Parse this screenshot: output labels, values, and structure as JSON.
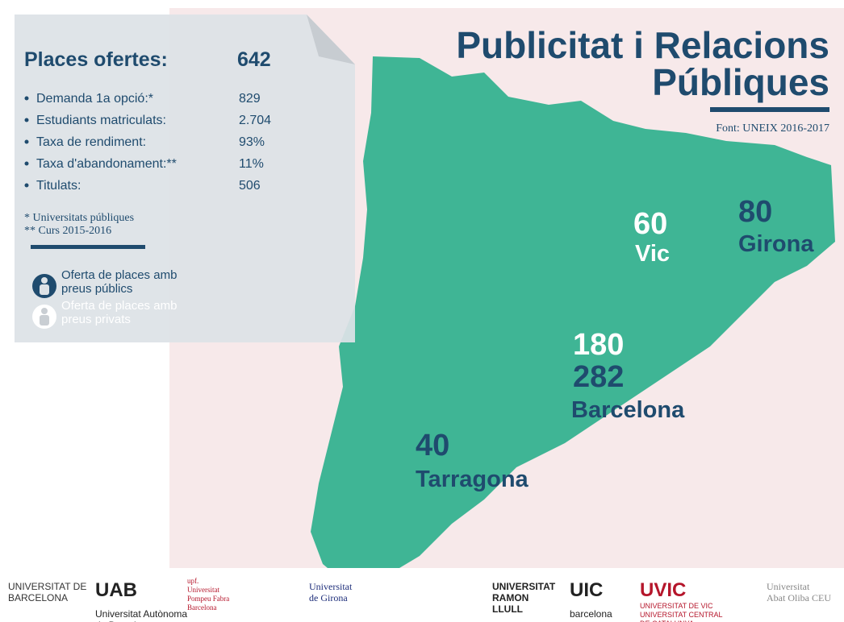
{
  "header": {
    "title_lines": [
      "Publicitat i Relacions",
      "Públiques"
    ],
    "source": "Font: UNEIX 2016-2017"
  },
  "panel": {
    "title": "Places ofertes:",
    "total": "642",
    "stats": [
      {
        "label": "Demanda 1a opció:*",
        "value": "829"
      },
      {
        "label": "Estudiants matriculats:",
        "value": "2.704"
      },
      {
        "label": "Taxa de rendiment:",
        "value": "93%"
      },
      {
        "label": "Taxa d'abandonament:**",
        "value": "11%"
      },
      {
        "label": "Titulats:",
        "value": "506"
      }
    ],
    "notes": [
      "* Universitats públiques",
      "** Curs 2015-2016"
    ],
    "legend": [
      {
        "lines": [
          "Oferta de places amb",
          "preus públics"
        ]
      },
      {
        "lines": [
          "Oferta de places amb",
          "preus privats"
        ]
      }
    ]
  },
  "cities": [
    {
      "name": "Vic",
      "private": "60"
    },
    {
      "name": "Girona",
      "public": "80"
    },
    {
      "name": "Barcelona",
      "private": "180",
      "public": "282"
    },
    {
      "name": "Tarragona",
      "public": "40"
    }
  ],
  "logos": [
    {
      "lines": [
        "UNIVERSITAT DE",
        "BARCELONA"
      ]
    },
    {
      "lines": [
        "UAB",
        "Universitat Autònoma",
        "de Barcelona"
      ]
    },
    {
      "lines": [
        "upf.",
        "Universitat",
        "Pompeu Fabra",
        "Barcelona"
      ]
    },
    {
      "lines": [
        "Universitat",
        "de Girona"
      ]
    },
    {
      "lines": [
        "UNIVERSITAT",
        "RAMON",
        "LLULL"
      ]
    },
    {
      "lines": [
        "UIC",
        "barcelona"
      ]
    },
    {
      "lines": [
        "UVIC",
        "UNIVERSITAT DE VIC",
        "UNIVERSITAT CENTRAL",
        "DE CATALUNYA"
      ]
    },
    {
      "lines": [
        "Universitat",
        "Abat Oliba CEU"
      ]
    }
  ]
}
